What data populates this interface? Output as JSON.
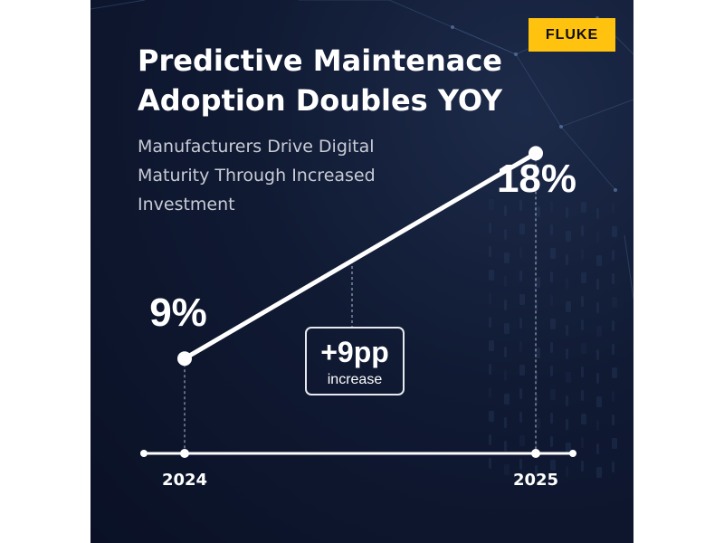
{
  "brand": {
    "logo_text": "FLUKE",
    "logo_color": "#fec20f"
  },
  "header": {
    "title": "Predictive Maintenace Adoption Doubles YOY",
    "subtitle": "Manufacturers Drive Digital Maturity Through Increased Investment"
  },
  "colors": {
    "background": "#0d1530",
    "line": "#ffffff",
    "guide": "#9aa3b5"
  },
  "chart_data": {
    "type": "line",
    "x": [
      "2024",
      "2025"
    ],
    "values": [
      9,
      18
    ],
    "value_labels": [
      "9%",
      "18%"
    ],
    "ylim": [
      0,
      20
    ],
    "annotation": {
      "value": "+9pp",
      "label": "increase"
    },
    "grid": false,
    "legend": "none"
  }
}
